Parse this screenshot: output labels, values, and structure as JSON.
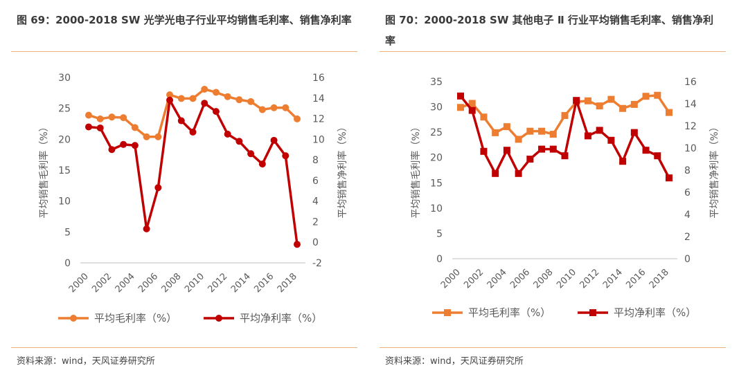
{
  "figures": [
    {
      "title": "图 69：2000-2018 SW 光学光电子行业平均销售毛利率、销售净利率",
      "source": "资料来源：wind，天风证券研究所"
    },
    {
      "title": "图 70：2000-2018 SW 其他电子 Ⅱ 行业平均销售毛利率、销售净利率",
      "source": "资料来源：wind，天风证券研究所"
    }
  ],
  "chart_data": [
    {
      "type": "line",
      "x": [
        2000,
        2001,
        2002,
        2003,
        2004,
        2005,
        2006,
        2007,
        2008,
        2009,
        2010,
        2011,
        2012,
        2013,
        2014,
        2015,
        2016,
        2017,
        2018
      ],
      "x_tick_labels": [
        "2000",
        "2002",
        "2004",
        "2006",
        "2008",
        "2010",
        "2012",
        "2014",
        "2016",
        "2018"
      ],
      "ylabel": "平均销售毛利率（%）",
      "y2label": "平均销售净利率（%）",
      "ylim": [
        0,
        30
      ],
      "y_ticks": [
        0,
        5,
        10,
        15,
        20,
        25,
        30
      ],
      "y2lim": [
        -2,
        16
      ],
      "y2_ticks": [
        -2,
        0,
        2,
        4,
        6,
        8,
        10,
        12,
        14,
        16
      ],
      "marker": "circle",
      "legend_position": "bottom",
      "series": [
        {
          "name": "平均毛利率（%）",
          "axis": "left",
          "color": "#ed7d31",
          "values": [
            23.9,
            23.3,
            23.6,
            23.5,
            21.9,
            20.4,
            20.4,
            27.2,
            26.6,
            26.6,
            28.1,
            27.6,
            26.9,
            26.4,
            26.1,
            24.8,
            25.1,
            25.1,
            23.3
          ]
        },
        {
          "name": "平均净利率（%）",
          "axis": "right",
          "color": "#c00000",
          "values": [
            11.2,
            11.1,
            9.0,
            9.5,
            9.4,
            1.3,
            5.3,
            13.8,
            11.8,
            10.7,
            13.5,
            12.7,
            10.5,
            9.8,
            8.6,
            7.6,
            9.9,
            8.4,
            -0.2
          ]
        }
      ]
    },
    {
      "type": "line",
      "x": [
        2000,
        2001,
        2002,
        2003,
        2004,
        2005,
        2006,
        2007,
        2008,
        2009,
        2010,
        2011,
        2012,
        2013,
        2014,
        2015,
        2016,
        2017,
        2018
      ],
      "x_tick_labels": [
        "2000",
        "2002",
        "2004",
        "2006",
        "2008",
        "2010",
        "2012",
        "2014",
        "2016",
        "2018"
      ],
      "ylabel": "平均销售毛利率（%）",
      "y2label": "平均销售净利率（%）",
      "ylim": [
        0,
        35
      ],
      "y_ticks": [
        0,
        5,
        10,
        15,
        20,
        25,
        30,
        35
      ],
      "y2lim": [
        0,
        16
      ],
      "y2_ticks": [
        0,
        2,
        4,
        6,
        8,
        10,
        12,
        14,
        16
      ],
      "marker": "square",
      "legend_position": "bottom",
      "series": [
        {
          "name": "平均毛利率（%）",
          "axis": "left",
          "color": "#ed7d31",
          "values": [
            29.9,
            30.7,
            28.0,
            24.9,
            26.1,
            23.6,
            25.2,
            25.2,
            24.6,
            28.3,
            31.0,
            31.2,
            30.2,
            31.5,
            29.7,
            30.5,
            32.1,
            32.3,
            28.9
          ]
        },
        {
          "name": "平均净利率（%）",
          "axis": "right",
          "color": "#c00000",
          "values": [
            14.7,
            13.4,
            9.7,
            7.7,
            9.8,
            7.7,
            9.0,
            9.9,
            9.9,
            9.3,
            14.3,
            11.1,
            11.6,
            10.7,
            8.8,
            11.4,
            9.8,
            9.3,
            7.3
          ]
        }
      ]
    }
  ]
}
